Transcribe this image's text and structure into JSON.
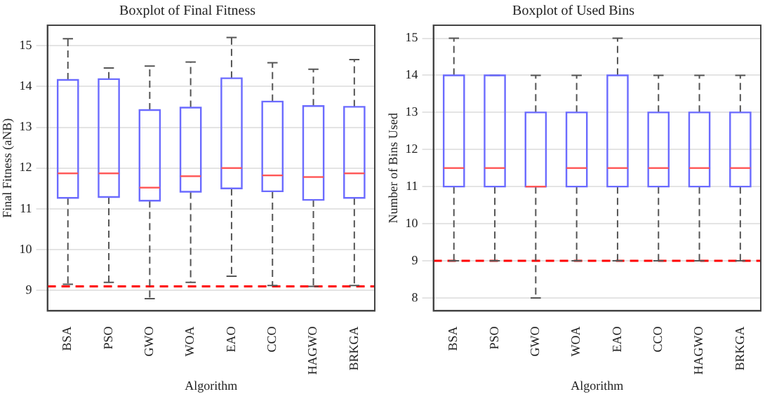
{
  "chart_data": [
    {
      "type": "box",
      "title": "Boxplot of Final Fitness",
      "xlabel": "Algorithm",
      "ylabel": "Final Fitness (aNB)",
      "categories": [
        "BSA",
        "PSO",
        "GWO",
        "WOA",
        "EAO",
        "CCO",
        "HAGWO",
        "BRKGA"
      ],
      "series": [
        {
          "color": "#6b6bff",
          "boxes": [
            {
              "low": 9.15,
              "q1": 11.27,
              "median": 11.87,
              "q3": 14.16,
              "high": 15.17
            },
            {
              "low": 9.2,
              "q1": 11.29,
              "median": 11.87,
              "q3": 14.18,
              "high": 14.45
            },
            {
              "low": 8.8,
              "q1": 11.2,
              "median": 11.52,
              "q3": 13.42,
              "high": 14.5
            },
            {
              "low": 9.2,
              "q1": 11.42,
              "median": 11.8,
              "q3": 13.48,
              "high": 14.6
            },
            {
              "low": 9.35,
              "q1": 11.5,
              "median": 12.0,
              "q3": 14.2,
              "high": 15.2
            },
            {
              "low": 9.12,
              "q1": 11.43,
              "median": 11.82,
              "q3": 13.63,
              "high": 14.58
            },
            {
              "low": 9.1,
              "q1": 11.22,
              "median": 11.78,
              "q3": 13.52,
              "high": 14.42
            },
            {
              "low": 9.12,
              "q1": 11.27,
              "median": 11.87,
              "q3": 13.5,
              "high": 14.66
            }
          ]
        }
      ],
      "ylim": [
        8.5,
        15.5
      ],
      "yticks": [
        9,
        10,
        11,
        12,
        13,
        14,
        15
      ],
      "grid": "y",
      "ref_lines": [
        {
          "axis": "y",
          "value": 9.1,
          "color": "#ff0000",
          "line_style": "dashed"
        }
      ]
    },
    {
      "type": "box",
      "title": "Boxplot of Used Bins",
      "xlabel": "Algorithm",
      "ylabel": "Number of Bins Used",
      "categories": [
        "BSA",
        "PSO",
        "GWO",
        "WOA",
        "EAO",
        "CCO",
        "HAGWO",
        "BRKGA"
      ],
      "series": [
        {
          "color": "#6b6bff",
          "boxes": [
            {
              "low": 9,
              "q1": 11,
              "median": 11.5,
              "q3": 14,
              "high": 15
            },
            {
              "low": 9,
              "q1": 11,
              "median": 11.5,
              "q3": 14,
              "high": 14
            },
            {
              "low": 8,
              "q1": 11,
              "median": 11,
              "q3": 13,
              "high": 14
            },
            {
              "low": 9,
              "q1": 11,
              "median": 11.5,
              "q3": 13,
              "high": 14
            },
            {
              "low": 9,
              "q1": 11,
              "median": 11.5,
              "q3": 14,
              "high": 15
            },
            {
              "low": 9,
              "q1": 11,
              "median": 11.5,
              "q3": 13,
              "high": 14
            },
            {
              "low": 9,
              "q1": 11,
              "median": 11.5,
              "q3": 13,
              "high": 14
            },
            {
              "low": 9,
              "q1": 11,
              "median": 11.5,
              "q3": 13,
              "high": 14
            }
          ]
        }
      ],
      "ylim": [
        7.65,
        15.35
      ],
      "yticks": [
        8,
        9,
        10,
        11,
        12,
        13,
        14,
        15
      ],
      "grid": "y",
      "ref_lines": [
        {
          "axis": "y",
          "value": 9,
          "color": "#ff0000",
          "line_style": "dashed"
        }
      ]
    }
  ]
}
